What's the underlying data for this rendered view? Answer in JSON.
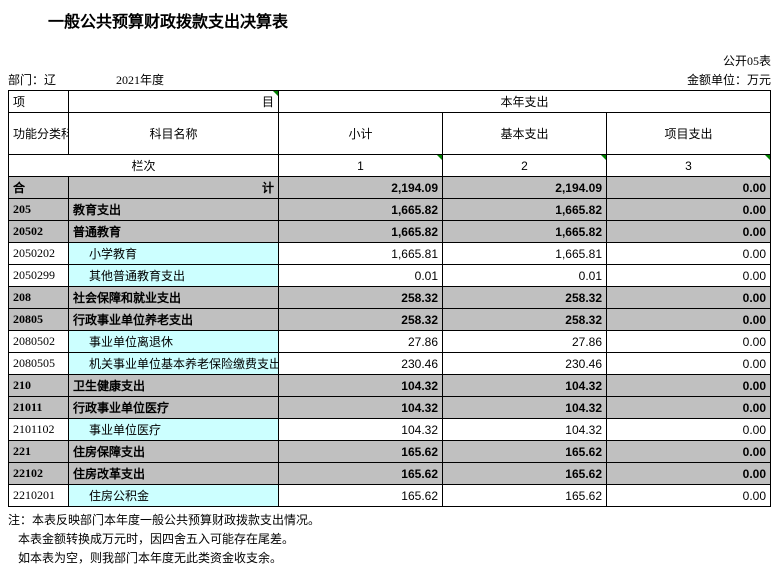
{
  "title": "一般公共预算财政拨款支出决算表",
  "meta": {
    "dept_label": "部门：辽",
    "year": "2021年度",
    "form_code": "公开05表",
    "unit": "金额单位：万元"
  },
  "headers": {
    "item": "项",
    "mu": "目",
    "this_year": "本年支出",
    "func_code": "功能分类科目编码",
    "subject_name": "科目名称",
    "subtotal": "小计",
    "basic": "基本支出",
    "project": "项目支出",
    "col_label": "栏次",
    "c1": "1",
    "c2": "2",
    "c3": "3",
    "total_left": "合",
    "total_right": "计"
  },
  "totals": {
    "subtotal": "2,194.09",
    "basic": "2,194.09",
    "project": "0.00"
  },
  "rows": [
    {
      "code": "205",
      "name": "教育支出",
      "subtotal": "1,665.82",
      "basic": "1,665.82",
      "project": "0.00",
      "style": "shade"
    },
    {
      "code": "20502",
      "name": "普通教育",
      "subtotal": "1,665.82",
      "basic": "1,665.82",
      "project": "0.00",
      "style": "shade"
    },
    {
      "code": "2050202",
      "name": "小学教育",
      "subtotal": "1,665.81",
      "basic": "1,665.81",
      "project": "0.00",
      "style": "cyan"
    },
    {
      "code": "2050299",
      "name": "其他普通教育支出",
      "subtotal": "0.01",
      "basic": "0.01",
      "project": "0.00",
      "style": "cyan"
    },
    {
      "code": "208",
      "name": "社会保障和就业支出",
      "subtotal": "258.32",
      "basic": "258.32",
      "project": "0.00",
      "style": "shade"
    },
    {
      "code": "20805",
      "name": "行政事业单位养老支出",
      "subtotal": "258.32",
      "basic": "258.32",
      "project": "0.00",
      "style": "shade"
    },
    {
      "code": "2080502",
      "name": "事业单位离退休",
      "subtotal": "27.86",
      "basic": "27.86",
      "project": "0.00",
      "style": "cyan"
    },
    {
      "code": "2080505",
      "name": "机关事业单位基本养老保险缴费支出",
      "subtotal": "230.46",
      "basic": "230.46",
      "project": "0.00",
      "style": "cyan"
    },
    {
      "code": "210",
      "name": "卫生健康支出",
      "subtotal": "104.32",
      "basic": "104.32",
      "project": "0.00",
      "style": "shade"
    },
    {
      "code": "21011",
      "name": "行政事业单位医疗",
      "subtotal": "104.32",
      "basic": "104.32",
      "project": "0.00",
      "style": "shade"
    },
    {
      "code": "2101102",
      "name": "事业单位医疗",
      "subtotal": "104.32",
      "basic": "104.32",
      "project": "0.00",
      "style": "cyan"
    },
    {
      "code": "221",
      "name": "住房保障支出",
      "subtotal": "165.62",
      "basic": "165.62",
      "project": "0.00",
      "style": "shade"
    },
    {
      "code": "22102",
      "name": "住房改革支出",
      "subtotal": "165.62",
      "basic": "165.62",
      "project": "0.00",
      "style": "shade"
    },
    {
      "code": "2210201",
      "name": "住房公积金",
      "subtotal": "165.62",
      "basic": "165.62",
      "project": "0.00",
      "style": "cyan"
    }
  ],
  "notes": {
    "n1": "注：本表反映部门本年度一般公共预算财政拨款支出情况。",
    "n2": "本表金额转换成万元时，因四舍五入可能存在尾差。",
    "n3": "如本表为空，则我部门本年度无此类资金收支余。"
  },
  "style": {
    "shade_bg": "#c0c0c0",
    "cyan_bg": "#ccffff",
    "border": "#000000",
    "tri": "#008000"
  }
}
